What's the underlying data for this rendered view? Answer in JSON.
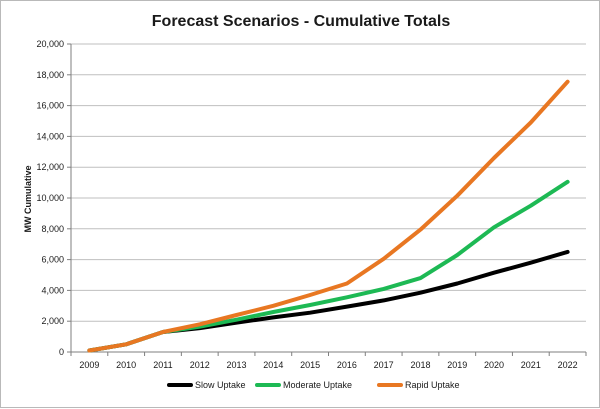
{
  "chart_data": {
    "type": "line",
    "title": "Forecast Scenarios - Cumulative Totals",
    "xlabel": "",
    "ylabel": "MW Cumulative",
    "categories": [
      "2009",
      "2010",
      "2011",
      "2012",
      "2013",
      "2014",
      "2015",
      "2016",
      "2017",
      "2018",
      "2019",
      "2020",
      "2021",
      "2022"
    ],
    "ylim": [
      0,
      20000
    ],
    "yticks": [
      0,
      2000,
      4000,
      6000,
      8000,
      10000,
      12000,
      14000,
      16000,
      18000,
      20000
    ],
    "ytick_labels": [
      "0",
      "2,000",
      "4,000",
      "6,000",
      "8,000",
      "10,000",
      "12,000",
      "14,000",
      "16,000",
      "18,000",
      "20,000"
    ],
    "grid": true,
    "legend_position": "bottom",
    "series": [
      {
        "name": "Slow Uptake",
        "color": "#000000",
        "values": [
          100,
          500,
          1300,
          1550,
          1900,
          2250,
          2550,
          2950,
          3350,
          3850,
          4450,
          5150,
          5800,
          6500
        ]
      },
      {
        "name": "Moderate Uptake",
        "color": "#1db954",
        "values": [
          100,
          500,
          1300,
          1650,
          2100,
          2600,
          3050,
          3550,
          4100,
          4800,
          6300,
          8100,
          9500,
          11050
        ]
      },
      {
        "name": "Rapid Uptake",
        "color": "#e87722",
        "values": [
          100,
          500,
          1300,
          1800,
          2400,
          3000,
          3700,
          4450,
          6050,
          7950,
          10150,
          12600,
          14900,
          17550
        ]
      }
    ]
  }
}
